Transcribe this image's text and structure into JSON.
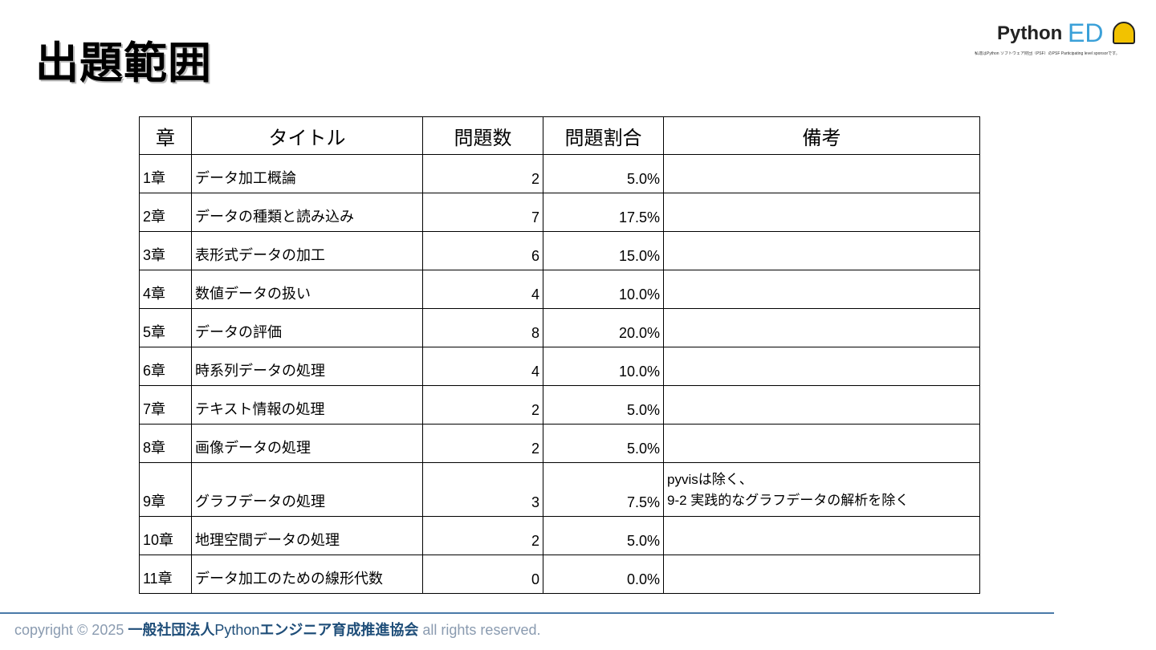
{
  "title": "出題範囲",
  "logo": {
    "text_python": "Python",
    "text_ed": "ED",
    "badge": "PARTICIPATING python",
    "caption": "私達はPython ソフトウェア財団（PSF）のPSF Participating level sponsorです。"
  },
  "table": {
    "headers": [
      "章",
      "タイトル",
      "問題数",
      "問題割合",
      "備考"
    ],
    "rows": [
      {
        "chapter": "1章",
        "title": "データ加工概論",
        "count": "2",
        "ratio": "5.0%",
        "note": ""
      },
      {
        "chapter": "2章",
        "title": "データの種類と読み込み",
        "count": "7",
        "ratio": "17.5%",
        "note": ""
      },
      {
        "chapter": "3章",
        "title": "表形式データの加工",
        "count": "6",
        "ratio": "15.0%",
        "note": ""
      },
      {
        "chapter": "4章",
        "title": "数値データの扱い",
        "count": "4",
        "ratio": "10.0%",
        "note": ""
      },
      {
        "chapter": "5章",
        "title": "データの評価",
        "count": "8",
        "ratio": "20.0%",
        "note": ""
      },
      {
        "chapter": "6章",
        "title": "時系列データの処理",
        "count": "4",
        "ratio": "10.0%",
        "note": ""
      },
      {
        "chapter": "7章",
        "title": "テキスト情報の処理",
        "count": "2",
        "ratio": "5.0%",
        "note": ""
      },
      {
        "chapter": "8章",
        "title": "画像データの処理",
        "count": "2",
        "ratio": "5.0%",
        "note": ""
      },
      {
        "chapter": "9章",
        "title": "グラフデータの処理",
        "count": "3",
        "ratio": "7.5%",
        "note": "pyvisは除く、\n9-2 実践的なグラフデータの解析を除く"
      },
      {
        "chapter": "10章",
        "title": "地理空間データの処理",
        "count": "2",
        "ratio": "5.0%",
        "note": ""
      },
      {
        "chapter": "11章",
        "title": "データ加工のための線形代数",
        "count": "0",
        "ratio": "0.0%",
        "note": ""
      }
    ]
  },
  "footer": {
    "prefix": "copyright © 2025 ",
    "org1": "一般社団法人",
    "org_py": "Python",
    "org2": "エンジニア育成推進協会",
    "suffix": " all rights reserved."
  },
  "colors": {
    "footer_rule": "#4a7aa8",
    "footer_text": "#8a9bb0",
    "footer_org": "#1f4e79",
    "logo_ed": "#3aa0d8"
  }
}
